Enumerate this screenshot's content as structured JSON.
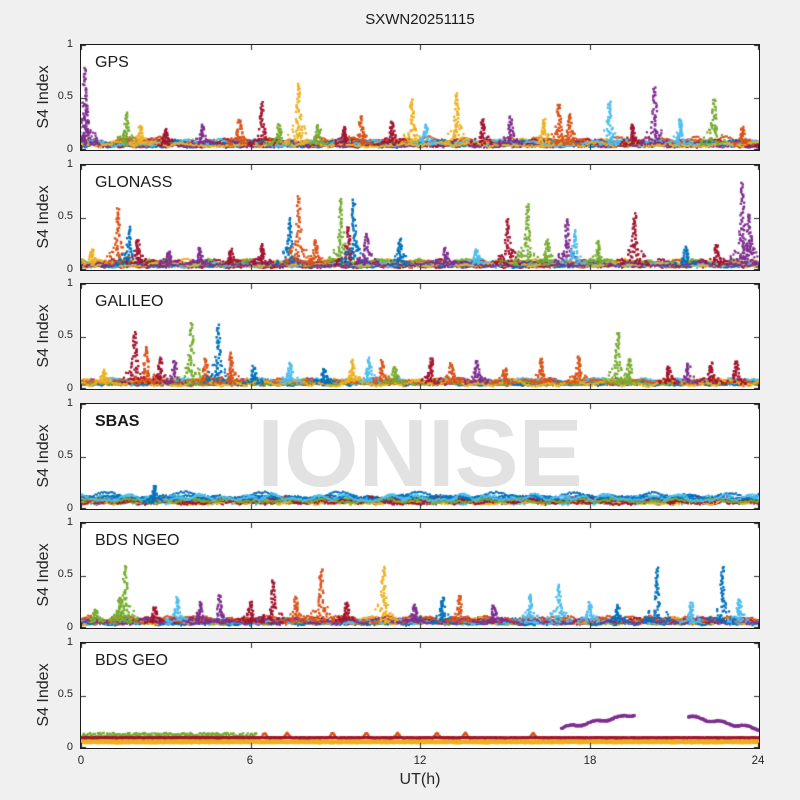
{
  "figure": {
    "title": "SXWN20251115",
    "background": "#f0f0f0",
    "watermark": "IONISE",
    "text_color": "#1a1a1a"
  },
  "axes": {
    "ylabel": "S4 Index",
    "xlabel": "UT(h)",
    "yticks": [
      "1",
      "0.5",
      "0"
    ],
    "xticks": [
      "0",
      "6",
      "12",
      "18",
      "24"
    ]
  },
  "chart_data": {
    "type": "scatter",
    "title": "SXWN20251115",
    "xlabel": "UT(h)",
    "ylabel": "S4 Index",
    "xlim": [
      0,
      24
    ],
    "ylim": [
      0,
      1
    ],
    "xticks": [
      0,
      6,
      12,
      18,
      24
    ],
    "yticks": [
      0,
      0.5,
      1
    ],
    "grid": false,
    "legend": "none",
    "watermark": "IONISE",
    "palette": [
      "#0072BD",
      "#D95319",
      "#EDB120",
      "#7E2F8E",
      "#77AC30",
      "#4DBEEE",
      "#A2142F"
    ],
    "palette_names": [
      "blue",
      "orange",
      "yellow",
      "purple",
      "green",
      "cyan",
      "maroon"
    ],
    "spike_format": [
      "time_ut_h",
      "peak_s4",
      "palette_index"
    ],
    "panels": [
      {
        "label": "GPS",
        "band": {
          "base": 0.03,
          "amp": 0.055,
          "tracks": [
            0,
            1,
            2,
            3,
            4,
            5,
            6,
            1,
            2,
            0,
            6,
            3,
            5,
            2
          ]
        },
        "spikes": [
          [
            0.12,
            0.8,
            3
          ],
          [
            0.18,
            0.45,
            3
          ],
          [
            1.6,
            0.36,
            4
          ],
          [
            2.1,
            0.24,
            2
          ],
          [
            3.0,
            0.2,
            6
          ],
          [
            4.3,
            0.25,
            3
          ],
          [
            5.6,
            0.3,
            1
          ],
          [
            6.4,
            0.46,
            6
          ],
          [
            7.0,
            0.25,
            4
          ],
          [
            7.7,
            0.65,
            2
          ],
          [
            8.4,
            0.25,
            4
          ],
          [
            9.3,
            0.22,
            6
          ],
          [
            9.9,
            0.33,
            1
          ],
          [
            11.0,
            0.28,
            6
          ],
          [
            11.7,
            0.5,
            2
          ],
          [
            12.2,
            0.24,
            5
          ],
          [
            13.3,
            0.55,
            2
          ],
          [
            14.2,
            0.3,
            6
          ],
          [
            15.2,
            0.32,
            3
          ],
          [
            16.4,
            0.3,
            2
          ],
          [
            16.9,
            0.45,
            1
          ],
          [
            17.3,
            0.35,
            1
          ],
          [
            18.7,
            0.47,
            5
          ],
          [
            19.5,
            0.25,
            6
          ],
          [
            20.3,
            0.62,
            3
          ],
          [
            21.2,
            0.3,
            5
          ],
          [
            22.4,
            0.5,
            4
          ],
          [
            23.4,
            0.22,
            1
          ]
        ]
      },
      {
        "label": "GLONASS",
        "band": {
          "base": 0.025,
          "amp": 0.05,
          "tracks": [
            1,
            0,
            6,
            2,
            3,
            4,
            5,
            1,
            0,
            6,
            4,
            5,
            2,
            3
          ]
        },
        "spikes": [
          [
            0.4,
            0.2,
            2
          ],
          [
            1.3,
            0.6,
            1
          ],
          [
            1.7,
            0.42,
            0
          ],
          [
            2.0,
            0.3,
            6
          ],
          [
            3.1,
            0.18,
            3
          ],
          [
            4.2,
            0.22,
            3
          ],
          [
            5.3,
            0.2,
            6
          ],
          [
            6.4,
            0.25,
            6
          ],
          [
            7.4,
            0.5,
            0
          ],
          [
            7.7,
            0.72,
            1
          ],
          [
            8.3,
            0.3,
            1
          ],
          [
            9.2,
            0.7,
            4
          ],
          [
            9.45,
            0.42,
            6
          ],
          [
            9.65,
            0.68,
            0
          ],
          [
            10.1,
            0.35,
            3
          ],
          [
            11.3,
            0.3,
            0
          ],
          [
            12.9,
            0.22,
            3
          ],
          [
            14.0,
            0.2,
            5
          ],
          [
            15.1,
            0.5,
            6
          ],
          [
            15.8,
            0.64,
            4
          ],
          [
            16.5,
            0.3,
            4
          ],
          [
            17.2,
            0.5,
            3
          ],
          [
            17.45,
            0.38,
            5
          ],
          [
            18.3,
            0.28,
            4
          ],
          [
            19.6,
            0.55,
            6
          ],
          [
            21.4,
            0.22,
            0
          ],
          [
            22.5,
            0.25,
            6
          ],
          [
            23.4,
            0.85,
            3
          ],
          [
            23.65,
            0.55,
            3
          ]
        ]
      },
      {
        "label": "GALILEO",
        "band": {
          "base": 0.03,
          "amp": 0.05,
          "tracks": [
            2,
            1,
            0,
            6,
            3,
            4,
            5,
            2,
            1,
            0,
            5,
            4,
            1,
            2
          ]
        },
        "spikes": [
          [
            0.8,
            0.18,
            2
          ],
          [
            1.9,
            0.55,
            6
          ],
          [
            2.3,
            0.42,
            1
          ],
          [
            2.8,
            0.3,
            6
          ],
          [
            3.3,
            0.28,
            3
          ],
          [
            3.9,
            0.65,
            4
          ],
          [
            4.4,
            0.3,
            1
          ],
          [
            4.85,
            0.62,
            0
          ],
          [
            5.3,
            0.35,
            1
          ],
          [
            6.1,
            0.22,
            0
          ],
          [
            7.4,
            0.25,
            5
          ],
          [
            8.6,
            0.2,
            0
          ],
          [
            9.6,
            0.28,
            2
          ],
          [
            10.2,
            0.3,
            5
          ],
          [
            10.65,
            0.28,
            1
          ],
          [
            11.1,
            0.22,
            4
          ],
          [
            12.4,
            0.3,
            6
          ],
          [
            13.1,
            0.25,
            1
          ],
          [
            14.0,
            0.28,
            3
          ],
          [
            15.0,
            0.2,
            1
          ],
          [
            16.3,
            0.3,
            1
          ],
          [
            17.6,
            0.32,
            1
          ],
          [
            19.0,
            0.55,
            4
          ],
          [
            19.4,
            0.3,
            4
          ],
          [
            20.8,
            0.22,
            6
          ],
          [
            21.5,
            0.25,
            3
          ],
          [
            22.3,
            0.25,
            6
          ],
          [
            23.2,
            0.27,
            6
          ]
        ]
      },
      {
        "label": "SBAS",
        "bold": true,
        "watermark": true,
        "band": {
          "base": 0.06,
          "amp": 0.05,
          "tracks": [
            0,
            6,
            5,
            0,
            6,
            4,
            2,
            0,
            6,
            5,
            6,
            0,
            4,
            5
          ]
        },
        "spikes": [
          [
            2.6,
            0.23,
            0
          ]
        ]
      },
      {
        "label": "BDS NGEO",
        "band": {
          "base": 0.03,
          "amp": 0.05,
          "tracks": [
            6,
            1,
            2,
            0,
            3,
            4,
            5,
            1,
            2,
            0,
            6,
            5,
            1,
            3
          ]
        },
        "spikes": [
          [
            0.5,
            0.18,
            4
          ],
          [
            1.35,
            0.3,
            4
          ],
          [
            1.55,
            0.6,
            4
          ],
          [
            2.6,
            0.2,
            6
          ],
          [
            3.4,
            0.3,
            5
          ],
          [
            4.2,
            0.25,
            3
          ],
          [
            4.9,
            0.33,
            3
          ],
          [
            6.0,
            0.25,
            6
          ],
          [
            6.8,
            0.46,
            6
          ],
          [
            7.6,
            0.3,
            1
          ],
          [
            8.5,
            0.57,
            1
          ],
          [
            9.4,
            0.25,
            6
          ],
          [
            10.7,
            0.6,
            2
          ],
          [
            11.8,
            0.22,
            3
          ],
          [
            12.8,
            0.3,
            0
          ],
          [
            13.4,
            0.32,
            1
          ],
          [
            14.6,
            0.22,
            3
          ],
          [
            15.9,
            0.32,
            5
          ],
          [
            16.9,
            0.43,
            5
          ],
          [
            18.0,
            0.25,
            5
          ],
          [
            19.0,
            0.22,
            0
          ],
          [
            20.4,
            0.58,
            0
          ],
          [
            21.6,
            0.25,
            5
          ],
          [
            22.7,
            0.6,
            0
          ],
          [
            23.3,
            0.28,
            5
          ]
        ]
      },
      {
        "label": "BDS GEO",
        "spikes": [],
        "lines": [
          {
            "color": 4,
            "y": 0.12,
            "noise": 0.05,
            "t0": 0,
            "t1": 6.2
          },
          {
            "color": 1,
            "y": 0.09,
            "noise": 0.014,
            "t0": 0,
            "t1": 24,
            "bumps": [
              6.5,
              7.3,
              8.9,
              10.1,
              11.2,
              12.6,
              13.6,
              16.0
            ]
          },
          {
            "color": 2,
            "y": 0.068,
            "noise": 0.012,
            "t0": 0,
            "t1": 24
          },
          {
            "color": 6,
            "y": 0.1,
            "noise": 0.008,
            "t0": 0,
            "t1": 24
          },
          {
            "color": 2,
            "y": 0.05,
            "noise": 0.008,
            "t0": 0,
            "t1": 24
          }
        ],
        "arcs": [
          {
            "color": 3,
            "t0": 17.0,
            "t1": 19.6,
            "y0": 0.19,
            "y1": 0.32
          },
          {
            "color": 3,
            "t0": 21.5,
            "t1": 24.0,
            "y0": 0.3,
            "y1": 0.18
          }
        ]
      }
    ]
  }
}
